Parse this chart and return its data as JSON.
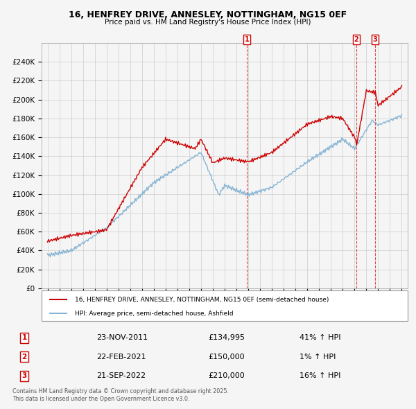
{
  "title": "16, HENFREY DRIVE, ANNESLEY, NOTTINGHAM, NG15 0EF",
  "subtitle": "Price paid vs. HM Land Registry's House Price Index (HPI)",
  "legend_line1": "16, HENFREY DRIVE, ANNESLEY, NOTTINGHAM, NG15 0EF (semi-detached house)",
  "legend_line2": "HPI: Average price, semi-detached house, Ashfield",
  "footer": "Contains HM Land Registry data © Crown copyright and database right 2025.\nThis data is licensed under the Open Government Licence v3.0.",
  "transactions": [
    {
      "num": 1,
      "date": "23-NOV-2011",
      "price": "£134,995",
      "change": "41% ↑ HPI",
      "x": 2011.9
    },
    {
      "num": 2,
      "date": "22-FEB-2021",
      "price": "£150,000",
      "change": "1% ↑ HPI",
      "x": 2021.15
    },
    {
      "num": 3,
      "date": "21-SEP-2022",
      "price": "£210,000",
      "change": "16% ↑ HPI",
      "x": 2022.72
    }
  ],
  "ylim": [
    0,
    260000
  ],
  "ytick_vals": [
    0,
    20000,
    40000,
    60000,
    80000,
    100000,
    120000,
    140000,
    160000,
    180000,
    200000,
    220000,
    240000
  ],
  "xlim": [
    1994.5,
    2025.5
  ],
  "red_color": "#cc0000",
  "blue_color": "#85b4d4",
  "background_color": "#f5f5f5",
  "grid_color": "#cccccc",
  "hpi_x": [
    1995,
    1995.083,
    1995.167,
    1995.25,
    1995.333,
    1995.417,
    1995.5,
    1995.583,
    1995.667,
    1995.75,
    1995.833,
    1995.917,
    1996,
    1996.083,
    1996.167,
    1996.25,
    1996.333,
    1996.417,
    1996.5,
    1996.583,
    1996.667,
    1996.75,
    1996.833,
    1996.917,
    1997,
    1997.083,
    1997.167,
    1997.25,
    1997.333,
    1997.417,
    1997.5,
    1997.583,
    1997.667,
    1997.75,
    1997.833,
    1997.917,
    1998,
    1998.083,
    1998.167,
    1998.25,
    1998.333,
    1998.417,
    1998.5,
    1998.583,
    1998.667,
    1998.75,
    1998.833,
    1998.917,
    1999,
    1999.083,
    1999.167,
    1999.25,
    1999.333,
    1999.417,
    1999.5,
    1999.583,
    1999.667,
    1999.75,
    1999.833,
    1999.917,
    2000,
    2000.083,
    2000.167,
    2000.25,
    2000.333,
    2000.417,
    2000.5,
    2000.583,
    2000.667,
    2000.75,
    2000.833,
    2000.917,
    2001,
    2001.083,
    2001.167,
    2001.25,
    2001.333,
    2001.417,
    2001.5,
    2001.583,
    2001.667,
    2001.75,
    2001.833,
    2001.917,
    2002,
    2002.083,
    2002.167,
    2002.25,
    2002.333,
    2002.417,
    2002.5,
    2002.583,
    2002.667,
    2002.75,
    2002.833,
    2002.917,
    2003,
    2003.083,
    2003.167,
    2003.25,
    2003.333,
    2003.417,
    2003.5,
    2003.583,
    2003.667,
    2003.75,
    2003.833,
    2003.917,
    2004,
    2004.083,
    2004.167,
    2004.25,
    2004.333,
    2004.417,
    2004.5,
    2004.583,
    2004.667,
    2004.75,
    2004.833,
    2004.917,
    2005,
    2005.083,
    2005.167,
    2005.25,
    2005.333,
    2005.417,
    2005.5,
    2005.583,
    2005.667,
    2005.75,
    2005.833,
    2005.917,
    2006,
    2006.083,
    2006.167,
    2006.25,
    2006.333,
    2006.417,
    2006.5,
    2006.583,
    2006.667,
    2006.75,
    2006.833,
    2006.917,
    2007,
    2007.083,
    2007.167,
    2007.25,
    2007.333,
    2007.417,
    2007.5,
    2007.583,
    2007.667,
    2007.75,
    2007.833,
    2007.917,
    2008,
    2008.083,
    2008.167,
    2008.25,
    2008.333,
    2008.417,
    2008.5,
    2008.583,
    2008.667,
    2008.75,
    2008.833,
    2008.917,
    2009,
    2009.083,
    2009.167,
    2009.25,
    2009.333,
    2009.417,
    2009.5,
    2009.583,
    2009.667,
    2009.75,
    2009.833,
    2009.917,
    2010,
    2010.083,
    2010.167,
    2010.25,
    2010.333,
    2010.417,
    2010.5,
    2010.583,
    2010.667,
    2010.75,
    2010.833,
    2010.917,
    2011,
    2011.083,
    2011.167,
    2011.25,
    2011.333,
    2011.417,
    2011.5,
    2011.583,
    2011.667,
    2011.75,
    2011.833,
    2011.917,
    2012,
    2012.083,
    2012.167,
    2012.25,
    2012.333,
    2012.417,
    2012.5,
    2012.583,
    2012.667,
    2012.75,
    2012.833,
    2012.917,
    2013,
    2013.083,
    2013.167,
    2013.25,
    2013.333,
    2013.417,
    2013.5,
    2013.583,
    2013.667,
    2013.75,
    2013.833,
    2013.917,
    2014,
    2014.083,
    2014.167,
    2014.25,
    2014.333,
    2014.417,
    2014.5,
    2014.583,
    2014.667,
    2014.75,
    2014.833,
    2014.917,
    2015,
    2015.083,
    2015.167,
    2015.25,
    2015.333,
    2015.417,
    2015.5,
    2015.583,
    2015.667,
    2015.75,
    2015.833,
    2015.917,
    2016,
    2016.083,
    2016.167,
    2016.25,
    2016.333,
    2016.417,
    2016.5,
    2016.583,
    2016.667,
    2016.75,
    2016.833,
    2016.917,
    2017,
    2017.083,
    2017.167,
    2017.25,
    2017.333,
    2017.417,
    2017.5,
    2017.583,
    2017.667,
    2017.75,
    2017.833,
    2017.917,
    2018,
    2018.083,
    2018.167,
    2018.25,
    2018.333,
    2018.417,
    2018.5,
    2018.583,
    2018.667,
    2018.75,
    2018.833,
    2018.917,
    2019,
    2019.083,
    2019.167,
    2019.25,
    2019.333,
    2019.417,
    2019.5,
    2019.583,
    2019.667,
    2019.75,
    2019.833,
    2019.917,
    2020,
    2020.083,
    2020.167,
    2020.25,
    2020.333,
    2020.417,
    2020.5,
    2020.583,
    2020.667,
    2020.75,
    2020.833,
    2020.917,
    2021,
    2021.083,
    2021.167,
    2021.25,
    2021.333,
    2021.417,
    2021.5,
    2021.583,
    2021.667,
    2021.75,
    2021.833,
    2021.917,
    2022,
    2022.083,
    2022.167,
    2022.25,
    2022.333,
    2022.417,
    2022.5,
    2022.583,
    2022.667,
    2022.75,
    2022.833,
    2022.917,
    2023,
    2023.083,
    2023.167,
    2023.25,
    2023.333,
    2023.417,
    2023.5,
    2023.583,
    2023.667,
    2023.75,
    2023.833,
    2023.917,
    2024,
    2024.083,
    2024.167,
    2024.25,
    2024.333,
    2024.417,
    2024.5,
    2024.583,
    2024.667,
    2024.75,
    2024.833,
    2024.917,
    2025
  ]
}
